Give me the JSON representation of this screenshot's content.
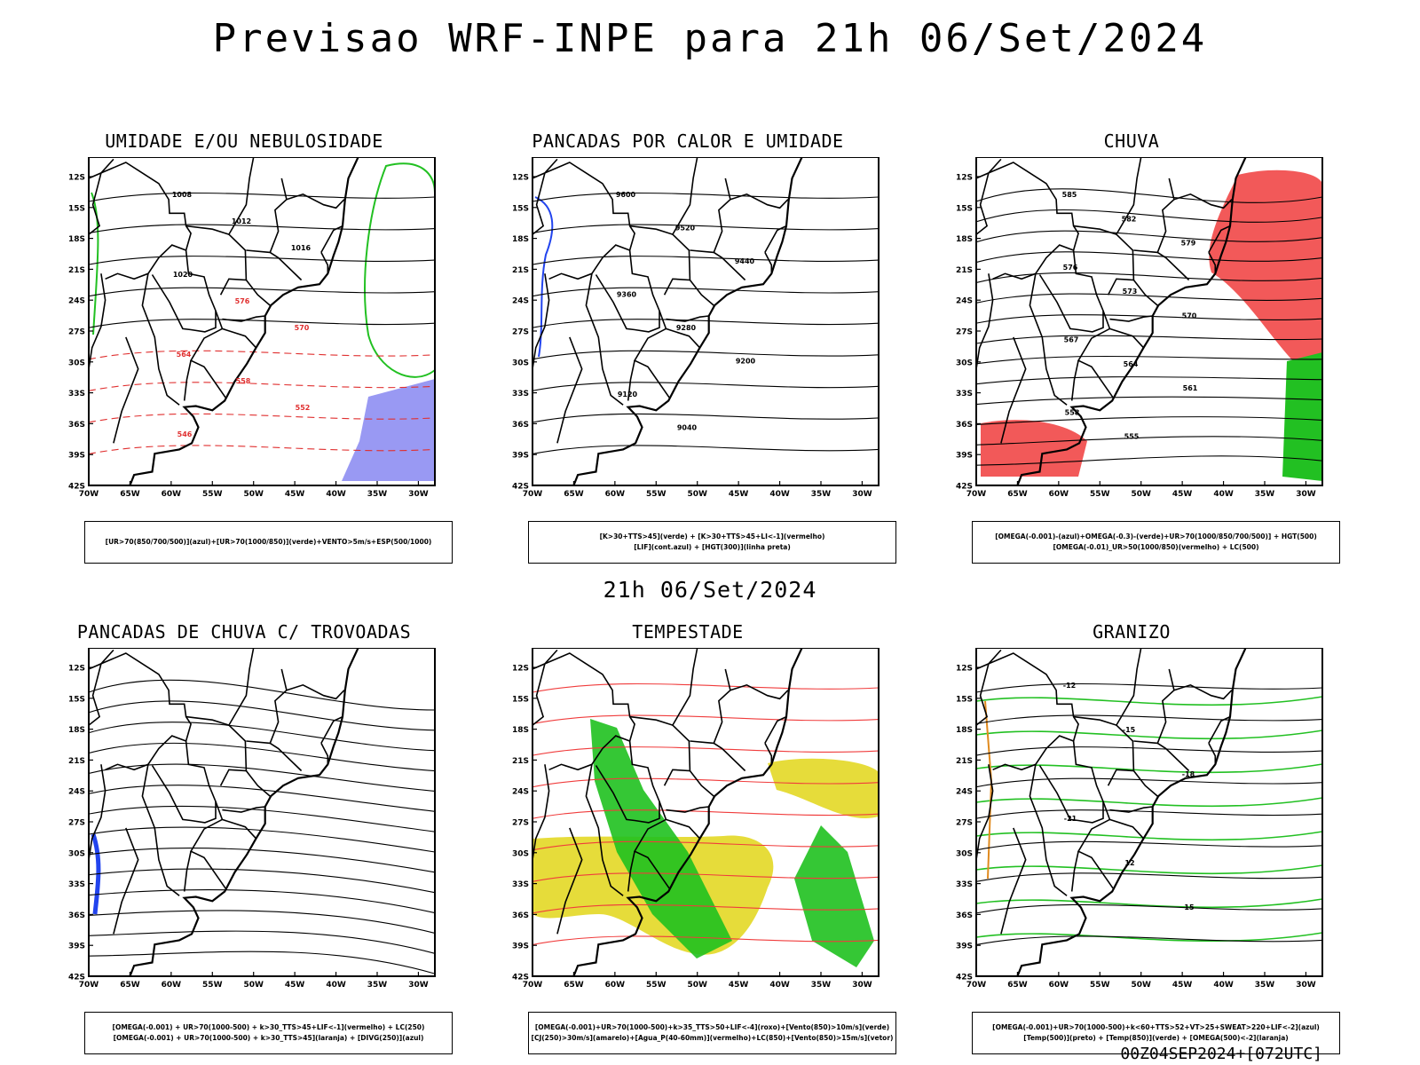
{
  "header": {
    "title": "Previsao WRF-INPE  para 21h 06/Set/2024"
  },
  "mid": {
    "subtitle": "21h 06/Set/2024"
  },
  "footer": {
    "run": "00Z04SEP2024+[072UTC]"
  },
  "axes": {
    "lat_labels": [
      "12S",
      "15S",
      "18S",
      "21S",
      "24S",
      "27S",
      "30S",
      "33S",
      "36S",
      "39S",
      "42S"
    ],
    "lon_labels": [
      "70W",
      "65W",
      "60W",
      "55W",
      "50W",
      "45W",
      "40W",
      "35W",
      "30W"
    ]
  },
  "panels": [
    {
      "title": "UMIDADE E/OU NEBULOSIDADE",
      "legend": [
        "[UR>70(850/700/500)](azul)+[UR>70(1000/850)](verde)+VENTO>5m/s+ESP(500/1000)"
      ],
      "contour_labels": [
        "1008",
        "1012",
        "1016",
        "1020",
        "576",
        "570",
        "564",
        "558",
        "552",
        "546"
      ]
    },
    {
      "title": "PANCADAS POR CALOR E UMIDADE",
      "legend": [
        "[K>30+TTS>45](verde) + [K>30+TTS>45+LI<-1](vermelho)",
        "[LIF](cont.azul) + [HGT(300)](linha preta)"
      ],
      "contour_labels": [
        "9600",
        "9520",
        "9440",
        "9360",
        "9280",
        "9200",
        "9120",
        "9040"
      ]
    },
    {
      "title": "CHUVA",
      "legend": [
        "[OMEGA(-0.001)-(azul)+OMEGA(-0.3)-(verde)+UR>70(1000/850/700/500)] + HGT(500)",
        "[OMEGA(-0.01)_UR>50(1000/850)(vermelho) + LC(500)"
      ],
      "contour_labels": [
        "585",
        "582",
        "579",
        "576",
        "573",
        "570",
        "567",
        "564",
        "561",
        "558",
        "555"
      ]
    },
    {
      "title": "PANCADAS DE CHUVA C/ TROVOADAS",
      "legend": [
        "[OMEGA(-0.001) + UR>70(1000-500) + k>30_TTS>45+LIF<-1](vermelho) + LC(250)",
        "[OMEGA(-0.001) + UR>70(1000-500) + k>30_TTS>45](laranja) + [DIVG(250)](azul)"
      ],
      "contour_labels": []
    },
    {
      "title": "TEMPESTADE",
      "legend": [
        "[OMEGA(-0.001)+UR>70(1000-500)+k>35_TTS>50+LIF<-4](roxo)+[Vento(850)>10m/s](verde)",
        "[CJ(250)>30m/s](amarelo)+[Agua_P(40-60mm)](vermelho)+LC(850)+[Vento(850)>15m/s](vetor)"
      ],
      "contour_labels": []
    },
    {
      "title": "GRANIZO",
      "legend": [
        "[OMEGA(-0.001)+UR>70(1000-500)+k<60+TTS>52+VT>25+SWEAT>220+LIF<-2](azul)",
        "[Temp(500)](preto) + [Temp(850)](verde) + [OMEGA(500)<-2](laranja)"
      ],
      "contour_labels": [
        "-12",
        "-15",
        "-18",
        "-21",
        "12",
        "15"
      ]
    }
  ]
}
